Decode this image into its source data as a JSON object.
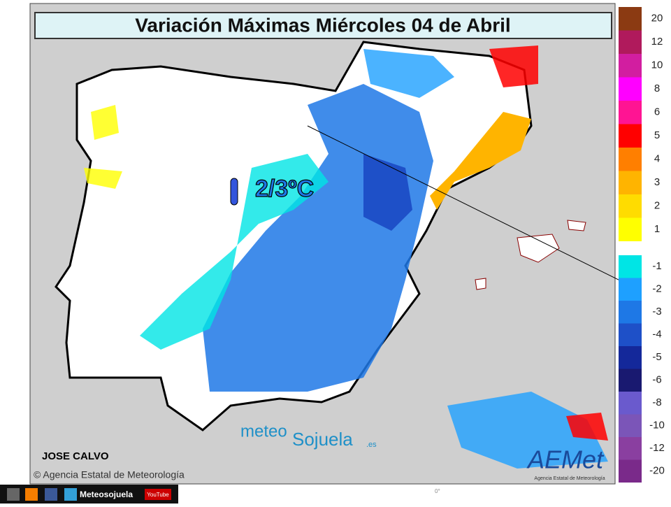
{
  "header": {
    "title": "Variación Máximas Miércoles 04 de Abril"
  },
  "map": {
    "annotation": "2/3ºC",
    "author": "JOSE CALVO",
    "credit": "© Agencia Estatal de Meteorología",
    "meridian": "0°",
    "watermark": {
      "left": "meteo",
      "right": "Sojuela",
      "suffix": ".es"
    },
    "logo": {
      "name": "AEMet",
      "subtitle": "Agencia Estatal de Meteorología"
    }
  },
  "legend": {
    "positive": [
      {
        "label": "20",
        "color": "#8b3a12"
      },
      {
        "label": "12",
        "color": "#b01a5c"
      },
      {
        "label": "10",
        "color": "#d21ea0"
      },
      {
        "label": "8",
        "color": "#ff00ff"
      },
      {
        "label": "6",
        "color": "#ff1493"
      },
      {
        "label": "5",
        "color": "#ff0000"
      },
      {
        "label": "4",
        "color": "#ff7f00"
      },
      {
        "label": "3",
        "color": "#ffb400"
      },
      {
        "label": "2",
        "color": "#ffdc00"
      },
      {
        "label": "1",
        "color": "#ffff00"
      }
    ],
    "negative": [
      {
        "label": "-1",
        "color": "#00e5e5"
      },
      {
        "label": "-2",
        "color": "#1ea0ff"
      },
      {
        "label": "-3",
        "color": "#1e78e6"
      },
      {
        "label": "-4",
        "color": "#1e50c8"
      },
      {
        "label": "-5",
        "color": "#14289a"
      },
      {
        "label": "-6",
        "color": "#191970"
      },
      {
        "label": "-8",
        "color": "#6a5acd"
      },
      {
        "label": "-10",
        "color": "#7b55b8"
      },
      {
        "label": "-12",
        "color": "#8a3fa0"
      },
      {
        "label": "-20",
        "color": "#7a2a8a"
      }
    ]
  },
  "footer": {
    "handle": "Meteosojuela",
    "youtube": "YouTube"
  }
}
